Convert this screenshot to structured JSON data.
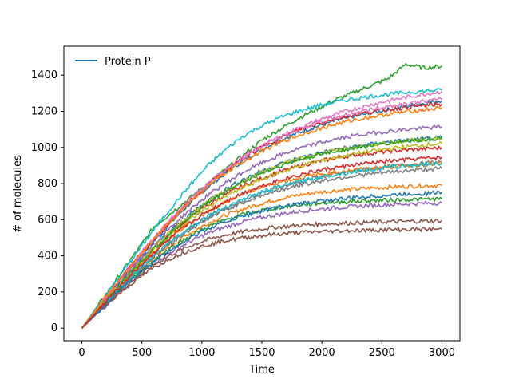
{
  "chart_data": {
    "type": "line",
    "title": "",
    "xlabel": "Time",
    "ylabel": "# of molecules",
    "xlim": [
      -150,
      3150
    ],
    "ylim": [
      -70,
      1560
    ],
    "x_ticks": [
      "0",
      "500",
      "1000",
      "1500",
      "2000",
      "2500",
      "3000"
    ],
    "y_ticks": [
      "0",
      "200",
      "400",
      "600",
      "800",
      "1000",
      "1200",
      "1400"
    ],
    "legend": {
      "position": "top-left",
      "entries": [
        "Protein P"
      ]
    },
    "grid": false,
    "x": [
      0,
      150,
      300,
      450,
      600,
      750,
      900,
      1050,
      1200,
      1350,
      1500,
      1650,
      1800,
      1950,
      2100,
      2250,
      2400,
      2550,
      2700,
      2850,
      3000
    ],
    "series": [
      {
        "color": "#1f77b4",
        "values": [
          0,
          122,
          245,
          365,
          480,
          590,
          690,
          780,
          860,
          930,
          990,
          1040,
          1080,
          1115,
          1145,
          1170,
          1190,
          1210,
          1228,
          1245,
          1260
        ]
      },
      {
        "color": "#ff7f0e",
        "values": [
          0,
          105,
          205,
          300,
          385,
          460,
          525,
          580,
          625,
          660,
          690,
          715,
          735,
          750,
          760,
          768,
          775,
          780,
          784,
          788,
          790
        ]
      },
      {
        "color": "#2ca02c",
        "values": [
          0,
          140,
          280,
          420,
          560,
          640,
          720,
          800,
          880,
          960,
          1040,
          1100,
          1160,
          1210,
          1260,
          1300,
          1340,
          1380,
          1460,
          1440,
          1450
        ]
      },
      {
        "color": "#d62728",
        "values": [
          0,
          115,
          230,
          340,
          440,
          530,
          610,
          680,
          740,
          790,
          830,
          865,
          895,
          920,
          940,
          955,
          968,
          978,
          986,
          992,
          998
        ]
      },
      {
        "color": "#9467bd",
        "values": [
          0,
          100,
          195,
          285,
          360,
          425,
          480,
          525,
          560,
          590,
          612,
          630,
          645,
          656,
          665,
          672,
          678,
          683,
          687,
          690,
          692
        ]
      },
      {
        "color": "#8c564b",
        "values": [
          0,
          98,
          190,
          275,
          350,
          410,
          455,
          490,
          515,
          535,
          550,
          560,
          568,
          574,
          578,
          582,
          585,
          588,
          590,
          592,
          594
        ]
      },
      {
        "color": "#e377c2",
        "values": [
          0,
          130,
          260,
          385,
          500,
          610,
          710,
          800,
          880,
          950,
          1010,
          1060,
          1105,
          1145,
          1180,
          1210,
          1235,
          1258,
          1278,
          1295,
          1310
        ]
      },
      {
        "color": "#7f7f7f",
        "values": [
          0,
          108,
          215,
          315,
          405,
          485,
          555,
          615,
          665,
          710,
          748,
          780,
          808,
          832,
          852,
          868,
          882,
          894,
          904,
          912,
          920
        ]
      },
      {
        "color": "#bcbd22",
        "values": [
          0,
          112,
          225,
          330,
          430,
          520,
          600,
          670,
          730,
          780,
          825,
          862,
          894,
          920,
          943,
          962,
          978,
          992,
          1004,
          1014,
          1022
        ]
      },
      {
        "color": "#17becf",
        "values": [
          0,
          135,
          275,
          410,
          545,
          670,
          790,
          900,
          990,
          1065,
          1120,
          1165,
          1200,
          1228,
          1250,
          1268,
          1282,
          1294,
          1304,
          1312,
          1318
        ]
      },
      {
        "color": "#1f77b4",
        "values": [
          0,
          118,
          235,
          345,
          450,
          545,
          630,
          705,
          770,
          825,
          870,
          908,
          940,
          965,
          986,
          1003,
          1017,
          1029,
          1039,
          1047,
          1054
        ]
      },
      {
        "color": "#ff7f0e",
        "values": [
          0,
          110,
          220,
          325,
          420,
          505,
          580,
          645,
          700,
          745,
          780,
          808,
          830,
          848,
          862,
          874,
          884,
          892,
          899,
          905,
          910
        ]
      },
      {
        "color": "#2ca02c",
        "values": [
          0,
          102,
          200,
          292,
          375,
          448,
          510,
          560,
          600,
          630,
          652,
          668,
          680,
          689,
          696,
          701,
          705,
          708,
          711,
          713,
          715
        ]
      },
      {
        "color": "#d62728",
        "values": [
          0,
          125,
          250,
          372,
          488,
          598,
          700,
          792,
          872,
          942,
          1002,
          1052,
          1094,
          1128,
          1156,
          1178,
          1196,
          1210,
          1222,
          1232,
          1240
        ]
      },
      {
        "color": "#9467bd",
        "values": [
          0,
          120,
          240,
          355,
          465,
          565,
          655,
          735,
          805,
          865,
          915,
          957,
          992,
          1020,
          1043,
          1062,
          1077,
          1089,
          1099,
          1107,
          1114
        ]
      },
      {
        "color": "#8c564b",
        "values": [
          0,
          95,
          185,
          265,
          335,
          390,
          432,
          462,
          484,
          500,
          512,
          521,
          528,
          533,
          537,
          540,
          542,
          544,
          546,
          547,
          548
        ]
      },
      {
        "color": "#e377c2",
        "values": [
          0,
          128,
          255,
          378,
          495,
          605,
          705,
          795,
          875,
          945,
          1005,
          1055,
          1098,
          1134,
          1164,
          1189,
          1210,
          1228,
          1243,
          1256,
          1266
        ]
      },
      {
        "color": "#7f7f7f",
        "values": [
          0,
          104,
          207,
          305,
          395,
          475,
          545,
          605,
          655,
          698,
          734,
          764,
          789,
          810,
          827,
          841,
          853,
          863,
          871,
          878,
          884
        ]
      },
      {
        "color": "#bcbd22",
        "values": [
          0,
          116,
          232,
          342,
          446,
          540,
          624,
          698,
          762,
          817,
          864,
          903,
          935,
          961,
          982,
          999,
          1013,
          1025,
          1035,
          1043,
          1050
        ]
      },
      {
        "color": "#17becf",
        "values": [
          0,
          106,
          212,
          312,
          404,
          486,
          558,
          620,
          672,
          716,
          753,
          784,
          810,
          832,
          850,
          865,
          878,
          889,
          898,
          906,
          913
        ]
      },
      {
        "color": "#1f77b4",
        "values": [
          0,
          99,
          198,
          288,
          370,
          440,
          500,
          550,
          590,
          622,
          648,
          669,
          686,
          700,
          711,
          720,
          728,
          735,
          741,
          746,
          750
        ]
      },
      {
        "color": "#2ca02c",
        "values": [
          0,
          113,
          226,
          335,
          438,
          532,
          617,
          692,
          757,
          812,
          858,
          896,
          928,
          955,
          977,
          995,
          1010,
          1023,
          1034,
          1043,
          1051
        ]
      },
      {
        "color": "#ff7f0e",
        "values": [
          0,
          126,
          252,
          375,
          492,
          600,
          698,
          785,
          860,
          925,
          980,
          1026,
          1065,
          1098,
          1126,
          1149,
          1168,
          1184,
          1198,
          1209,
          1219
        ]
      },
      {
        "color": "#d62728",
        "values": [
          0,
          109,
          218,
          322,
          418,
          504,
          580,
          646,
          702,
          749,
          788,
          820,
          847,
          869,
          887,
          902,
          914,
          924,
          932,
          939,
          945
        ]
      }
    ]
  }
}
